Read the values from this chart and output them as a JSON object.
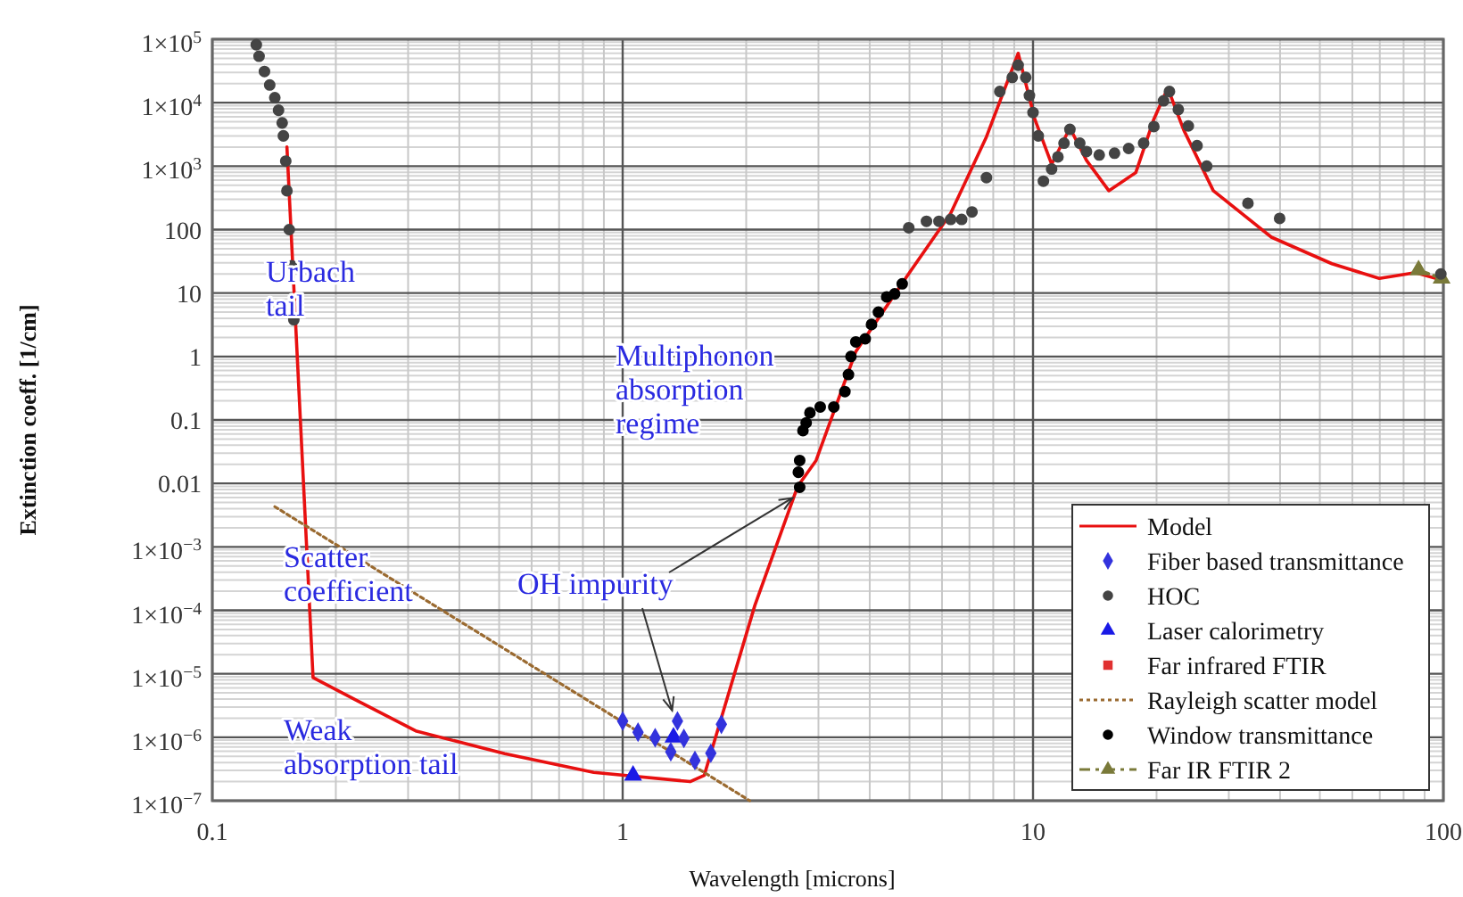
{
  "chart_data": {
    "type": "line",
    "xlabel": "Wavelength  [microns]",
    "ylabel": "Extinction coeff.  [1/cm]",
    "log": "xy",
    "grid": true,
    "legend": "bottom right",
    "xlim": [
      0.1,
      100
    ],
    "xticks": [
      0.1,
      1,
      10,
      100
    ],
    "ylim": [
      1e-07,
      100000.0
    ],
    "yticks": [
      {
        "value": 100000,
        "label": "1×10$^{5}$"
      },
      {
        "value": 10000,
        "label": "1×10$^{4}$"
      },
      {
        "value": 1000,
        "label": "1×10$^{3}$"
      },
      100,
      10,
      1,
      0.1,
      0.01,
      {
        "value": 0.001,
        "label": "1×10$^{−3}$"
      },
      {
        "value": 0.0001,
        "label": "1×10$^{−4}$"
      },
      {
        "value": 1e-05,
        "label": "1×10$^{−5}$"
      },
      {
        "value": 1e-06,
        "label": "1×10$^{−6}$"
      },
      {
        "value": 1e-07,
        "label": "1×10$^{−7}$"
      }
    ],
    "series": [
      {
        "name": "Model",
        "color": "#e81010",
        "marker": "none",
        "line_style": "solid",
        "x": [
          0.152,
          0.176,
          0.225,
          0.313,
          0.516,
          0.85,
          1.46,
          1.58,
          2.1,
          2.67,
          2.96,
          3.7,
          5.0,
          6.3,
          7.7,
          9.2,
          10.1,
          11.1,
          12.3,
          13.5,
          15.3,
          17.8,
          19.7,
          21.3,
          23.3,
          27.5,
          38.1,
          53.5,
          69.8,
          85.5,
          99
        ],
        "values": [
          2000,
          8.7e-06,
          3.8e-06,
          1.26e-06,
          5.5e-07,
          2.8e-07,
          2e-07,
          2.5e-07,
          0.00012,
          0.009,
          0.023,
          1.2,
          21,
          180,
          2900,
          60000,
          5500,
          1070,
          4000,
          1230,
          410,
          790,
          5500,
          17000,
          3700,
          410,
          76,
          29,
          17,
          21,
          16
        ]
      },
      {
        "name": "Fiber based transmittance",
        "type": "scatter",
        "color": "#3333dd",
        "marker": "diamond",
        "x": [
          1.0,
          1.09,
          1.2,
          1.31,
          1.36,
          1.41,
          1.5,
          1.64,
          1.74
        ],
        "values": [
          1.8e-06,
          1.2e-06,
          9.8e-07,
          5.9e-07,
          1.8e-06,
          9.6e-07,
          4.3e-07,
          5.6e-07,
          1.6e-06
        ]
      },
      {
        "name": "HOC",
        "type": "scatter",
        "color": "#444444",
        "marker": "circle",
        "x": [
          0.128,
          0.13,
          0.134,
          0.138,
          0.142,
          0.145,
          0.148,
          0.149,
          0.151,
          0.152,
          0.154,
          0.156,
          0.158,
          4.98,
          5.5,
          5.9,
          6.3,
          6.7,
          7.1,
          7.7,
          8.3,
          8.9,
          9.2,
          9.6,
          9.8,
          10.0,
          10.3,
          10.6,
          11.1,
          11.5,
          11.9,
          12.3,
          13.0,
          13.5,
          14.5,
          15.8,
          17.1,
          18.6,
          19.7,
          20.8,
          21.5,
          22.6,
          23.9,
          25.1,
          26.5,
          33.4,
          39.9,
          98.6
        ],
        "values": [
          82000,
          54000,
          31000,
          19000,
          12000,
          7600,
          4800,
          3000,
          1200,
          410,
          100,
          27,
          3.8,
          107,
          135,
          135,
          145,
          145,
          190,
          660,
          15000,
          25000,
          39000,
          25000,
          13000,
          7000,
          3000,
          580,
          900,
          1400,
          2300,
          3800,
          2300,
          1700,
          1500,
          1600,
          1900,
          2300,
          4200,
          10700,
          15000,
          7800,
          4300,
          2100,
          1000,
          260,
          150,
          20
        ]
      },
      {
        "name": "Laser calorimetry",
        "type": "scatter",
        "color": "#1a1ae6",
        "marker": "triangle",
        "x": [
          1.06,
          1.33
        ],
        "values": [
          2.5e-07,
          1e-06
        ]
      },
      {
        "name": "Far infrared FTIR",
        "type": "scatter",
        "color": "#e03030",
        "marker": "square"
      },
      {
        "name": "Rayleigh scatter model",
        "color": "#9a6a30",
        "marker": "none",
        "line_style": "dotted",
        "x": [
          0.142,
          2.04
        ],
        "values": [
          0.0043,
          1e-07
        ]
      },
      {
        "name": "Window transmittance",
        "type": "scatter",
        "color": "#000000",
        "marker": "circle",
        "x": [
          2.7,
          2.68,
          2.7,
          2.75,
          2.8,
          2.86,
          3.03,
          3.27,
          3.48,
          3.55,
          3.6,
          3.7,
          3.9,
          4.04,
          4.2,
          4.4,
          4.6,
          4.8
        ],
        "values": [
          0.0087,
          0.015,
          0.023,
          0.068,
          0.09,
          0.13,
          0.16,
          0.16,
          0.28,
          0.52,
          1.0,
          1.7,
          1.9,
          3.2,
          5,
          8.7,
          9.7,
          14
        ]
      },
      {
        "name": "Far IR FTIR 2",
        "color": "#7a7a3a",
        "marker": "triangle",
        "line_style": "dashed",
        "x": [
          87,
          99
        ],
        "values": [
          23,
          17
        ]
      }
    ],
    "annotations": [
      "Urbach\ntail",
      "Multiphonon\nabsorption\nregime",
      "Scatter\ncoefficient",
      {
        "text": "OH impurity",
        "x": 1.36,
        "y": 1.8e-06
      },
      "Weak\nabsorption tail"
    ]
  }
}
